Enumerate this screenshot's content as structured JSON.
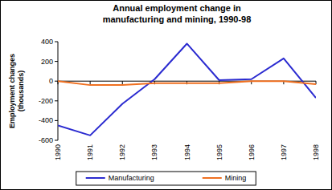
{
  "chart_data": {
    "type": "line",
    "title": "Annual employment change in manufacturing and mining, 1990-98",
    "y_label": "Employment changes (thousands)",
    "categories": [
      "1990",
      "1991",
      "1992",
      "1993",
      "1994",
      "1995",
      "1996",
      "1997",
      "1998"
    ],
    "series": [
      {
        "name": "Manufacturing",
        "color": "#2b2bd0",
        "values": [
          -450,
          -550,
          -230,
          20,
          380,
          10,
          20,
          230,
          -170
        ]
      },
      {
        "name": "Mining",
        "color": "#f07020",
        "values": [
          0,
          -40,
          -40,
          -20,
          -20,
          -20,
          0,
          0,
          -30
        ]
      }
    ],
    "ylim": [
      -600,
      400
    ],
    "yticks": [
      -600,
      -400,
      -200,
      0,
      200,
      400
    ],
    "grid": false,
    "legend": "bottom"
  }
}
